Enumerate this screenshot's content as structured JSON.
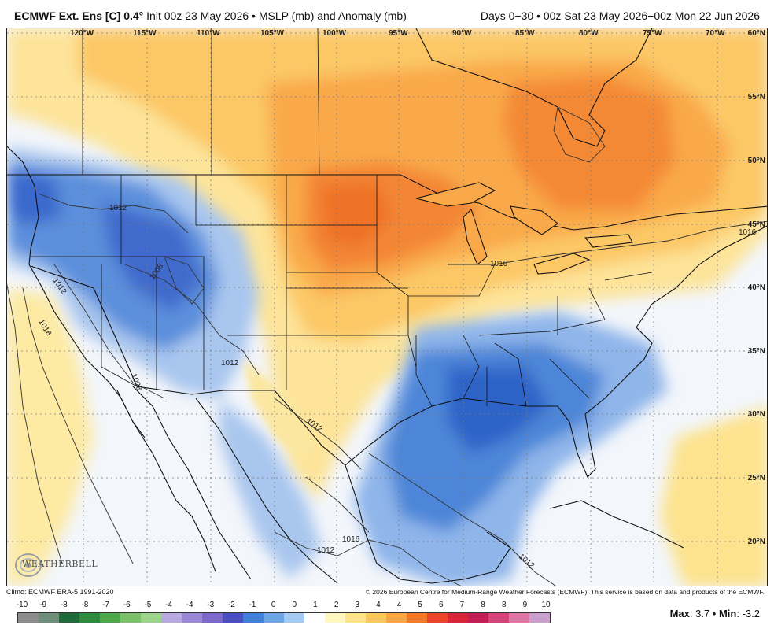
{
  "header": {
    "model": "ECMWF Ext. Ens [C] 0.4°",
    "init": "Init 00z 23 May 2026 • MSLP (mb) and Anomaly (mb)",
    "range": "Days 0−30 • 00z Sat 23 May 2026−00z Mon 22 Jun 2026"
  },
  "map": {
    "longitudes": [
      "120°W",
      "115°W",
      "110°W",
      "105°W",
      "100°W",
      "95°W",
      "90°W",
      "85°W",
      "80°W",
      "75°W",
      "70°W"
    ],
    "latitudes": [
      "60°N",
      "55°N",
      "50°N",
      "45°N",
      "40°N",
      "35°N",
      "30°N",
      "25°N",
      "20°N"
    ],
    "isobar_labels": [
      "1012",
      "1008",
      "1012",
      "1016",
      "1012",
      "1008",
      "1012",
      "1016",
      "1016",
      "1012",
      "1016",
      "1012"
    ],
    "colors": {
      "negative_strong": "#2f5fc4",
      "negative_mid": "#4e86d8",
      "negative_light": "#a9c6ee",
      "neutral": "#f3f6fb",
      "positive_light": "#fde9a0",
      "positive_mid": "#fbbf55",
      "positive_strong": "#f07a20"
    }
  },
  "logo": {
    "text": "WEATHERBELL"
  },
  "footer": {
    "climo": "Climo: ECMWF ERA-5 1991-2020",
    "copyright": "© 2026 European Centre for Medium-Range Weather Forecasts (ECMWF). This service is based on data and products of the ECMWF."
  },
  "legend": {
    "labels": [
      "-10",
      "-9",
      "-8",
      "-8",
      "-7",
      "-6",
      "-5",
      "-4",
      "-4",
      "-3",
      "-2",
      "-1",
      "0",
      "0",
      "1",
      "2",
      "3",
      "4",
      "4",
      "5",
      "6",
      "7",
      "8",
      "8",
      "9",
      "10"
    ],
    "colors": [
      "#8c8c8c",
      "#6f8f7a",
      "#1f6b3a",
      "#2e8b3e",
      "#4ea84b",
      "#7cc16a",
      "#9ed38b",
      "#b9a9e0",
      "#9b88d6",
      "#7b68c8",
      "#4a4fc0",
      "#3f7fd6",
      "#6ea6e6",
      "#a6cbf2",
      "#ffffff",
      "#fff6c0",
      "#fde38a",
      "#fbc860",
      "#f8a545",
      "#f37a2a",
      "#e8452b",
      "#d7263a",
      "#c01f55",
      "#d2447a",
      "#de77a6",
      "#c9a0cd"
    ]
  },
  "stats": {
    "max_label": "Max",
    "max": "3.7",
    "min_label": "Min",
    "min": "-3.2"
  }
}
